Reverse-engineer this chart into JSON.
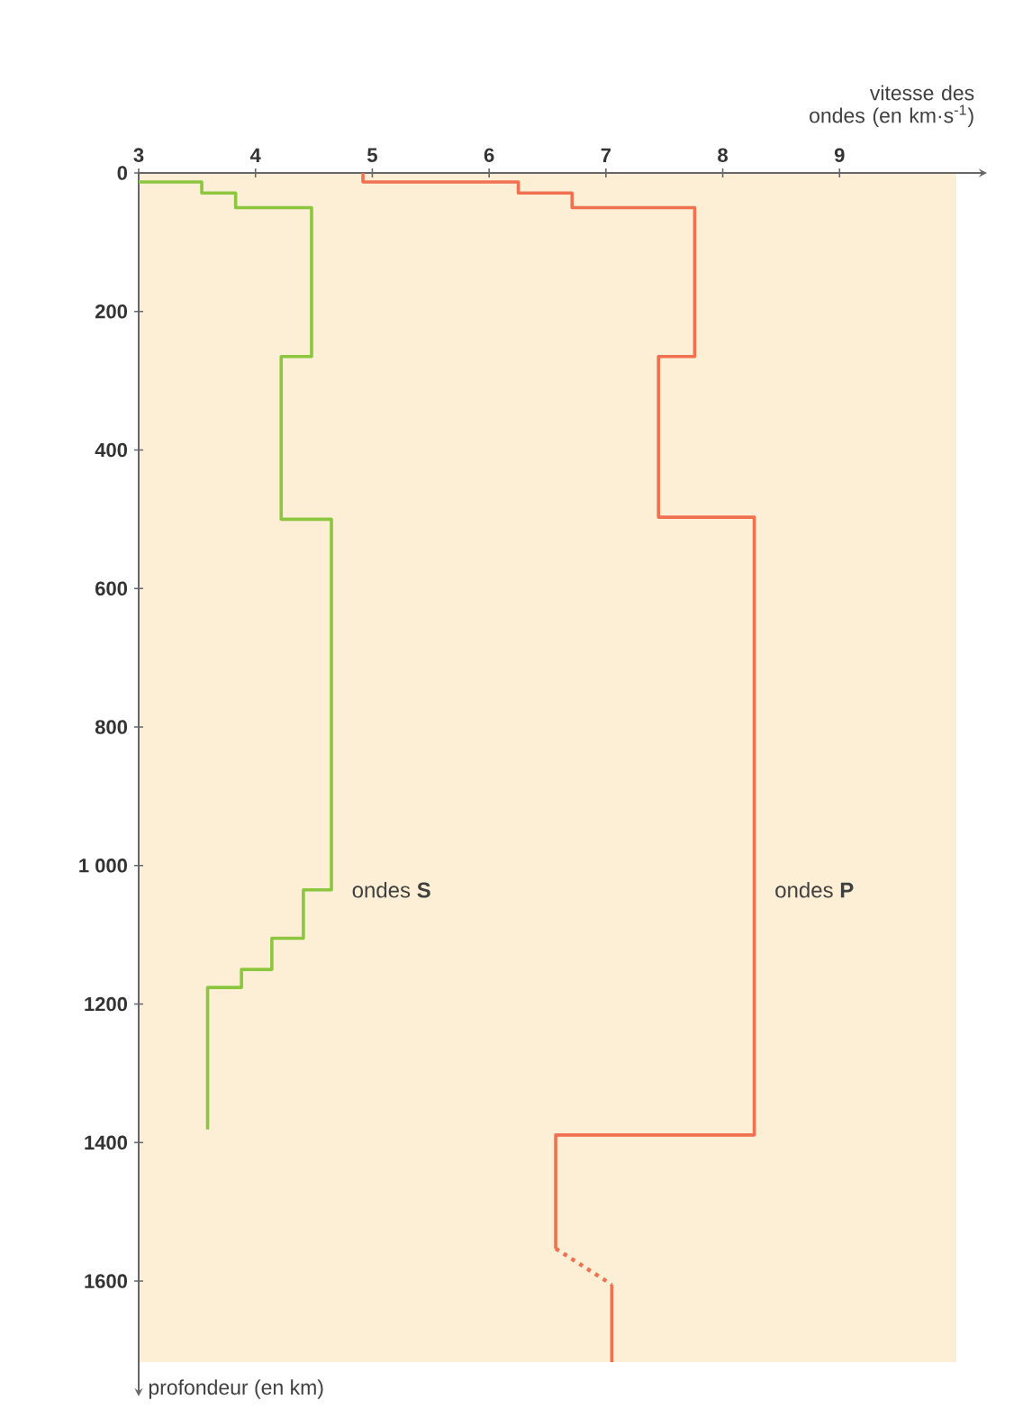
{
  "chart_data": {
    "type": "line",
    "xlabel": "vitesse des ondes (en km·s$^{-1}$)",
    "annotations": [
      "profondeur (en km)"
    ],
    "xlim": [
      3,
      10
    ],
    "xticks": [
      3,
      4,
      5,
      6,
      7,
      8,
      9
    ],
    "ylim": [
      1717,
      0
    ],
    "yticks": [
      0,
      200,
      400,
      600,
      800,
      {
        "value": 1000,
        "label": "1 000"
      },
      1200,
      1400,
      1600
    ],
    "grid": false,
    "legend": false,
    "marker": "none",
    "series": [
      {
        "name": "ondes **S**",
        "color": "#8cc63f",
        "line_style": "solid",
        "x": [
          3,
          3.54,
          3.54,
          3.83,
          3.83,
          4.48,
          4.48,
          4.22,
          4.22,
          4.65,
          4.65,
          4.41,
          4.41,
          4.14,
          4.14,
          3.88,
          3.88,
          3.59,
          3.59
        ],
        "values": [
          13,
          13,
          29,
          29,
          50,
          50,
          265,
          265,
          500,
          500,
          1035,
          1035,
          1105,
          1105,
          1150,
          1150,
          1176,
          1176,
          1381
        ]
      },
      {
        "name": "ondes **P**",
        "color": "#f07050",
        "line_style": "solid",
        "x": [
          4.92,
          4.92,
          6.25,
          6.25,
          6.71,
          6.71,
          7.76,
          7.76,
          7.45,
          7.45,
          8.27,
          8.27,
          6.57,
          6.57
        ],
        "values": [
          0,
          13,
          13,
          29,
          29,
          50,
          50,
          265,
          265,
          497,
          497,
          1389,
          1389,
          1553
        ]
      },
      {
        "color": "#f07050",
        "line_style": "dotted",
        "x": [
          6.57,
          7.05
        ],
        "values": [
          1553,
          1605
        ]
      },
      {
        "color": "#f07050",
        "line_style": "solid",
        "x": [
          7.05,
          7.05
        ],
        "values": [
          1605,
          1717
        ]
      }
    ]
  }
}
